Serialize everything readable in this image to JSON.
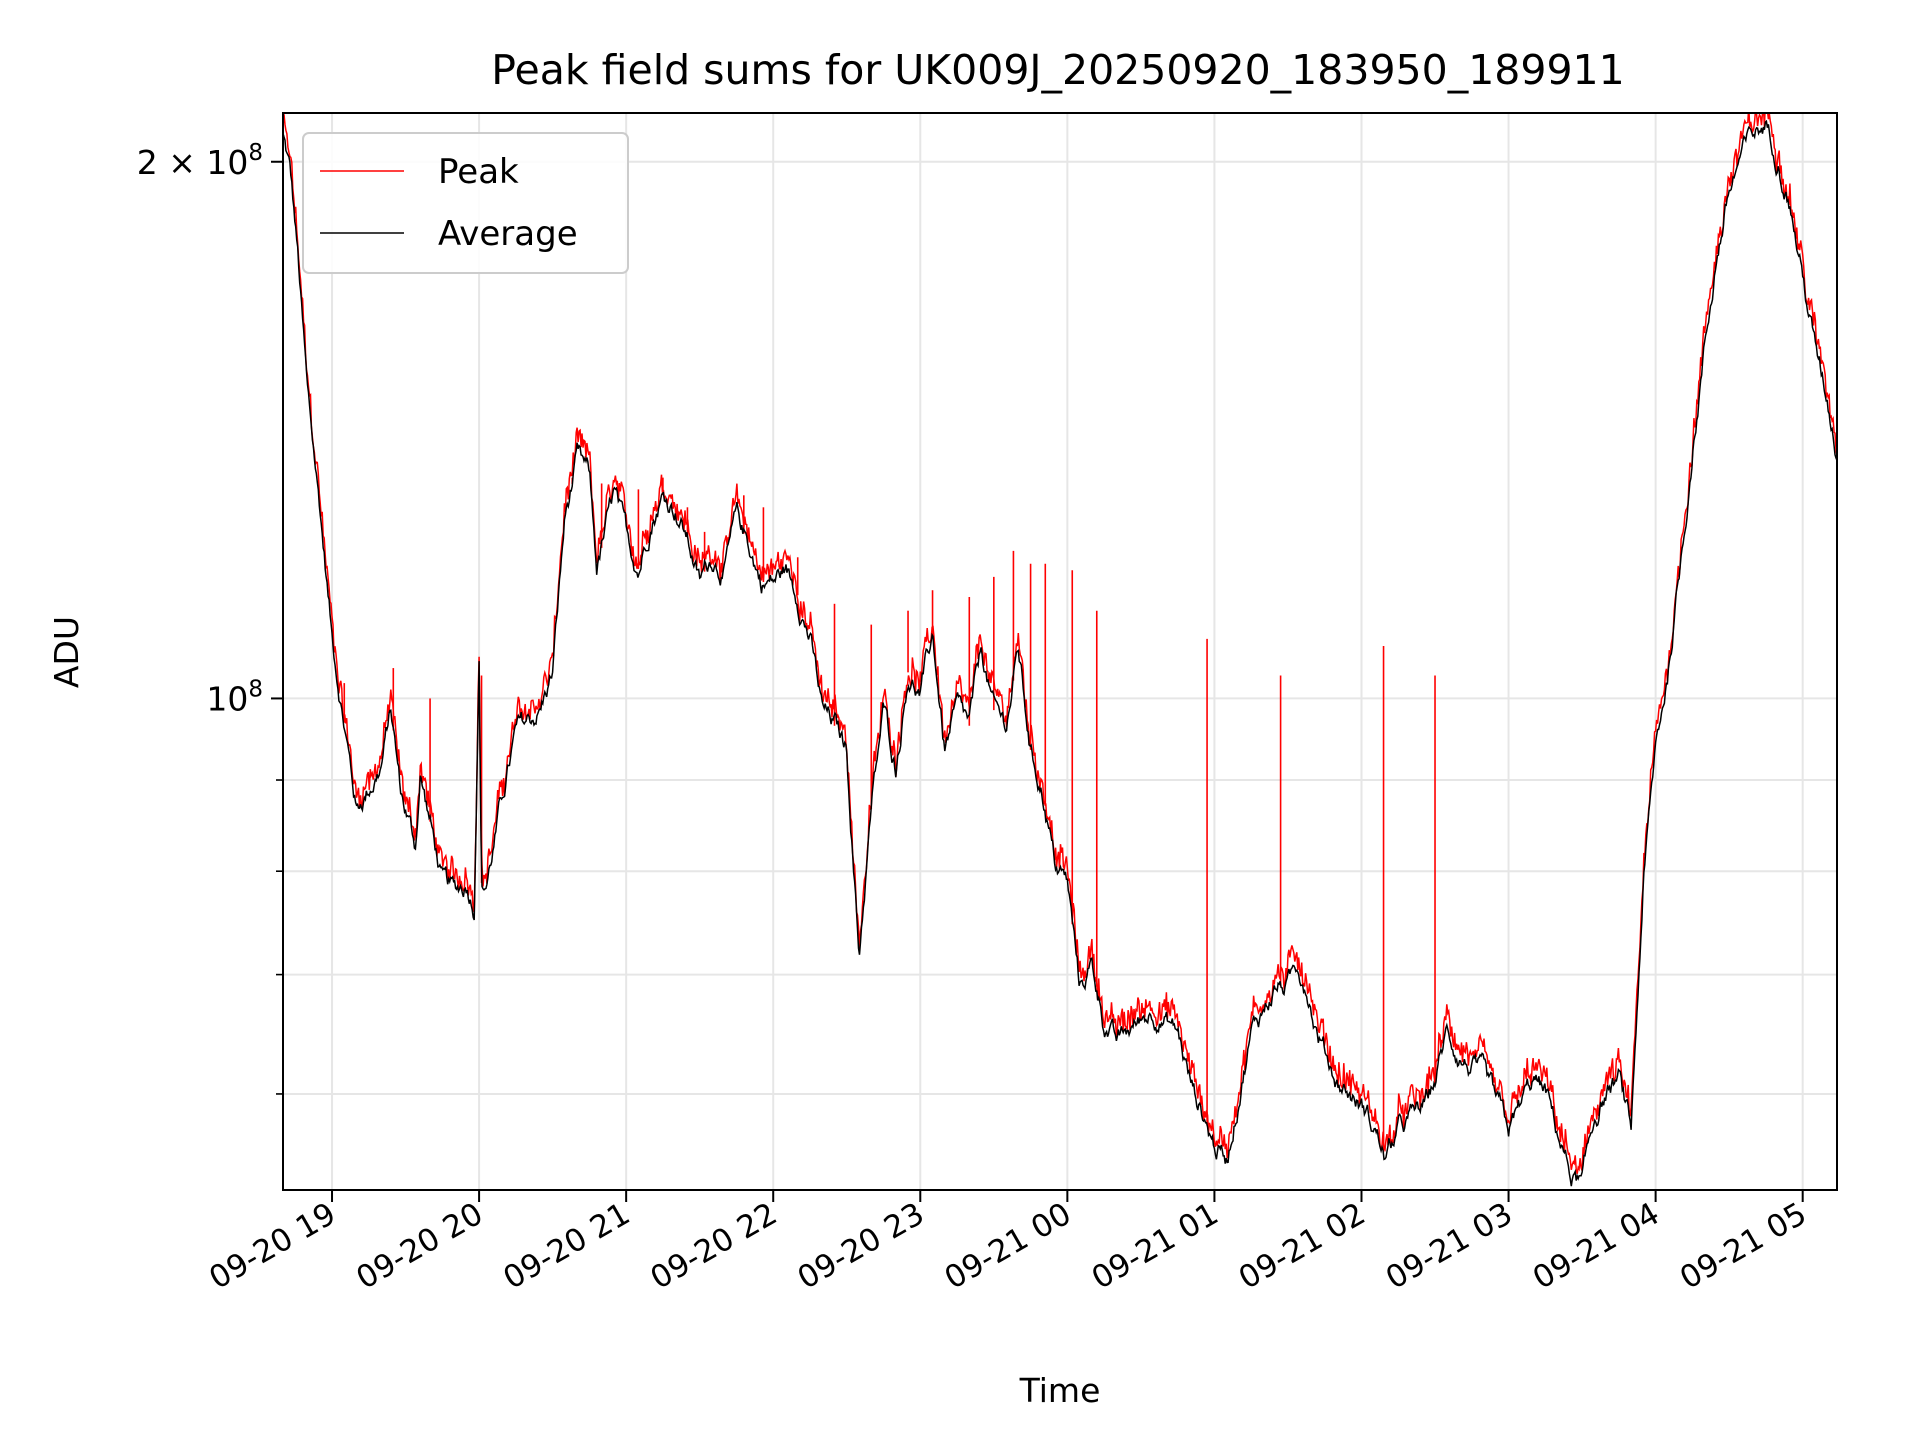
{
  "chart_data": {
    "type": "line",
    "title": "Peak field sums for UK009J_20250920_183950_189911",
    "xlabel": "Time",
    "ylabel": "ADU",
    "yscale": "log",
    "grid": true,
    "legend_position": "top-left",
    "xlim": [
      "2025-09-20 18:40",
      "2025-09-21 05:14"
    ],
    "ylim": [
      53000000,
      213000000
    ],
    "x_ticks": [
      "09-20 19",
      "09-20 20",
      "09-20 21",
      "09-20 22",
      "09-20 23",
      "09-21 00",
      "09-21 01",
      "09-21 02",
      "09-21 03",
      "09-21 04",
      "09-21 05"
    ],
    "y_major_ticks": [
      {
        "value": 100000000,
        "label_base": "10",
        "label_exp": "8"
      },
      {
        "value": 200000000,
        "label_base": "2 × 10",
        "label_exp": "8"
      }
    ],
    "y_minor_ticks": [
      60000000,
      70000000,
      80000000,
      90000000
    ],
    "series": [
      {
        "name": "Peak",
        "color": "#ff0000",
        "x": [
          "18:40",
          "18:43",
          "18:46",
          "18:50",
          "18:55",
          "19:00",
          "19:10",
          "19:14",
          "19:20",
          "19:24",
          "19:28",
          "19:34",
          "19:36",
          "19:42",
          "19:45",
          "19:50",
          "19:55",
          "19:58",
          "20:00",
          "20:01",
          "20:03",
          "20:10",
          "20:15",
          "20:25",
          "20:30",
          "20:35",
          "20:40",
          "20:45",
          "20:48",
          "20:55",
          "21:00",
          "21:05",
          "21:10",
          "21:15",
          "21:20",
          "21:25",
          "21:30",
          "21:35",
          "21:40",
          "21:45",
          "21:50",
          "21:55",
          "22:00",
          "22:05",
          "22:10",
          "22:15",
          "22:20",
          "22:25",
          "22:30",
          "22:35",
          "22:40",
          "22:45",
          "22:50",
          "22:55",
          "23:00",
          "23:05",
          "23:10",
          "23:15",
          "23:20",
          "23:25",
          "23:30",
          "23:35",
          "23:40",
          "23:45",
          "23:50",
          "23:55",
          "00:00",
          "00:05",
          "00:10",
          "00:15",
          "00:20",
          "00:25",
          "00:30",
          "00:35",
          "00:40",
          "00:45",
          "00:50",
          "00:56",
          "01:00",
          "01:05",
          "01:10",
          "01:15",
          "01:20",
          "01:25",
          "01:30",
          "01:34",
          "01:38",
          "01:42",
          "01:50",
          "02:00",
          "02:06",
          "02:10",
          "02:15",
          "02:20",
          "02:26",
          "02:30",
          "02:35",
          "02:40",
          "02:45",
          "02:50",
          "02:55",
          "03:00",
          "03:05",
          "03:10",
          "03:15",
          "03:20",
          "03:25",
          "03:30",
          "03:35",
          "03:40",
          "03:45",
          "03:50",
          "03:55",
          "04:00",
          "04:05",
          "04:10",
          "04:15",
          "04:20",
          "04:25",
          "04:30",
          "04:35",
          "04:40",
          "04:45",
          "04:50",
          "04:55",
          "05:00",
          "05:05",
          "05:10",
          "05:14"
        ],
        "y": [
          210000000,
          200000000,
          180000000,
          150000000,
          130000000,
          110000000,
          88000000,
          90000000,
          93000000,
          100000000,
          90000000,
          84000000,
          92000000,
          84000000,
          80000000,
          79000000,
          80000000,
          78000000,
          107000000,
          80000000,
          80000000,
          90000000,
          97000000,
          100000000,
          105000000,
          128000000,
          138000000,
          135000000,
          120000000,
          132000000,
          125000000,
          120000000,
          128000000,
          132000000,
          130000000,
          125000000,
          118000000,
          122000000,
          120000000,
          128000000,
          124000000,
          118000000,
          118000000,
          120000000,
          116000000,
          110000000,
          100000000,
          98000000,
          95000000,
          73000000,
          88000000,
          100000000,
          93000000,
          105000000,
          102000000,
          110000000,
          95000000,
          100000000,
          98000000,
          108000000,
          100000000,
          98000000,
          108000000,
          95000000,
          90000000,
          82000000,
          80000000,
          70000000,
          72000000,
          67000000,
          65000000,
          66000000,
          67000000,
          68000000,
          67000000,
          66000000,
          62000000,
          59000000,
          57000000,
          56000000,
          61000000,
          66000000,
          68000000,
          70000000,
          70000000,
          72000000,
          70000000,
          66000000,
          62000000,
          60000000,
          58000000,
          56000000,
          58000000,
          59000000,
          60000000,
          62000000,
          66000000,
          64000000,
          63000000,
          62000000,
          60000000,
          58000000,
          60000000,
          62000000,
          61000000,
          58000000,
          55000000,
          54000000,
          59000000,
          61000000,
          62000000,
          58000000,
          80000000,
          95000000,
          105000000,
          120000000,
          140000000,
          160000000,
          180000000,
          195000000,
          205000000,
          210000000,
          213000000,
          205000000,
          192000000,
          175000000,
          160000000,
          150000000,
          140000000
        ],
        "spikes": [
          {
            "t": "19:05",
            "v": 102000000
          },
          {
            "t": "19:25",
            "v": 104000000
          },
          {
            "t": "19:40",
            "v": 100000000
          },
          {
            "t": "20:01",
            "v": 103000000
          },
          {
            "t": "20:38",
            "v": 133000000
          },
          {
            "t": "20:50",
            "v": 132000000
          },
          {
            "t": "21:05",
            "v": 131000000
          },
          {
            "t": "21:15",
            "v": 133000000
          },
          {
            "t": "21:25",
            "v": 128000000
          },
          {
            "t": "21:32",
            "v": 124000000
          },
          {
            "t": "21:48",
            "v": 130000000
          },
          {
            "t": "21:56",
            "v": 128000000
          },
          {
            "t": "22:10",
            "v": 120000000
          },
          {
            "t": "22:25",
            "v": 113000000
          },
          {
            "t": "22:40",
            "v": 110000000
          },
          {
            "t": "22:55",
            "v": 112000000
          },
          {
            "t": "23:05",
            "v": 115000000
          },
          {
            "t": "23:20",
            "v": 114000000
          },
          {
            "t": "23:30",
            "v": 117000000
          },
          {
            "t": "23:38",
            "v": 121000000
          },
          {
            "t": "23:45",
            "v": 119000000
          },
          {
            "t": "23:51",
            "v": 119000000
          },
          {
            "t": "00:02",
            "v": 118000000
          },
          {
            "t": "00:12",
            "v": 112000000
          },
          {
            "t": "00:57",
            "v": 108000000
          },
          {
            "t": "01:27",
            "v": 103000000
          },
          {
            "t": "02:09",
            "v": 107000000
          },
          {
            "t": "02:30",
            "v": 103000000
          }
        ]
      },
      {
        "name": "Average",
        "color": "#000000",
        "note_same_x_as": "Peak",
        "offset_factor": 0.985
      }
    ]
  }
}
